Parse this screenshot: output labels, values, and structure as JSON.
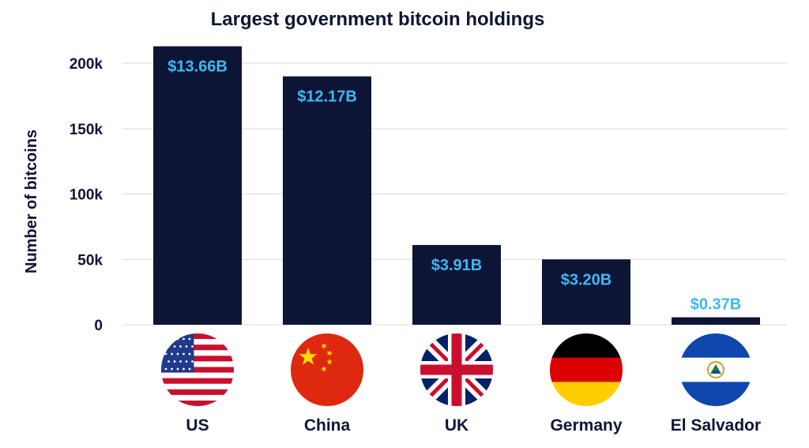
{
  "chart_data": {
    "type": "bar",
    "title": "Largest government bitcoin holdings",
    "xlabel": "",
    "ylabel": "Number of bitcoins",
    "categories": [
      "US",
      "China",
      "UK",
      "Germany",
      "El Salvador"
    ],
    "values": [
      213000,
      190000,
      61000,
      50000,
      5700
    ],
    "data_labels": [
      "$13.66B",
      "$12.17B",
      "$3.91B",
      "$3.20B",
      "$0.37B"
    ],
    "ylim": [
      0,
      220000
    ],
    "yticks": [
      0,
      50000,
      100000,
      150000,
      200000
    ],
    "ytick_labels": [
      "0",
      "50k",
      "100k",
      "150k",
      "200k"
    ],
    "grid": true,
    "legend": "none",
    "bar_color": "#0d1537",
    "label_color": "#3fb8f0",
    "flags": [
      "us-flag-icon",
      "china-flag-icon",
      "uk-flag-icon",
      "germany-flag-icon",
      "el-salvador-flag-icon"
    ]
  }
}
